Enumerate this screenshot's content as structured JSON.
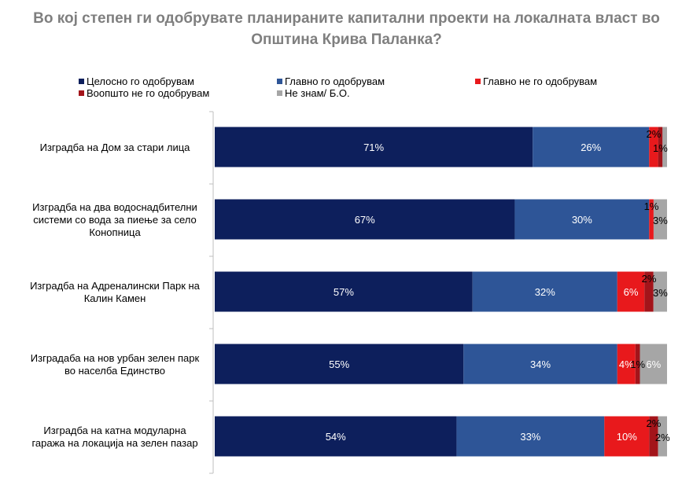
{
  "title_lines": [
    "Во кој степен ги одобрувате планираните капитални проекти на локалната власт во",
    "Општина Крива Паланка?"
  ],
  "chart_data": {
    "type": "bar",
    "orientation": "horizontal",
    "stacked": true,
    "percent_scale": true,
    "title": "Во кој степен ги одобрувате планираните капитални проекти на локалната власт во Општина Крива Паланка?",
    "legend_position": "top",
    "grid": false,
    "categories": [
      "Изградба на Дом за стари лица",
      "Изградба на два водоснадбителни системи со вода за пиење за село Конопница",
      "Изградба на Адреналински Парк на Калин Камен",
      "Изградаба на нов урбан зелен парк во населба Единство",
      "Изградба на катна модуларна гаража на локација на зелен пазар"
    ],
    "category_lines": [
      [
        "Изградба на Дом за стари лица"
      ],
      [
        "Изградба на два водоснадбителни",
        "системи со вода за пиење за село",
        "Конопница"
      ],
      [
        "Изградба на Адреналински Парк на",
        "Калин Камен"
      ],
      [
        "Изградаба на нов урбан зелен парк",
        "во населба Единство"
      ],
      [
        "Изградба на катна модуларна",
        "гаража на локација на зелен пазар"
      ]
    ],
    "series": [
      {
        "name": "Целосно го одобрувам",
        "color": "#0d1f5c",
        "values": [
          71,
          67,
          57,
          55,
          54
        ]
      },
      {
        "name": "Главно го одобрувам",
        "color": "#2e5597",
        "values": [
          26,
          30,
          32,
          34,
          33
        ]
      },
      {
        "name": "Главно не го одобрувам",
        "color": "#e8191c",
        "values": [
          2,
          1,
          6,
          4,
          10
        ]
      },
      {
        "name": "Воопшто не го одобрувам",
        "color": "#a3141a",
        "values": [
          1,
          0,
          2,
          1,
          2
        ]
      },
      {
        "name": "Не знам/ Б.О.",
        "color": "#a6a6a6",
        "values": [
          1,
          3,
          3,
          6,
          2
        ]
      }
    ],
    "labels": [
      [
        "71%",
        "26%",
        "2%",
        "1%",
        ""
      ],
      [
        "67%",
        "30%",
        "1%",
        "",
        "3%"
      ],
      [
        "57%",
        "32%",
        "6%",
        "2%",
        "3%"
      ],
      [
        "55%",
        "34%",
        "4%",
        "1%",
        "6%"
      ],
      [
        "54%",
        "33%",
        "10%",
        "2%",
        "2%"
      ]
    ]
  }
}
